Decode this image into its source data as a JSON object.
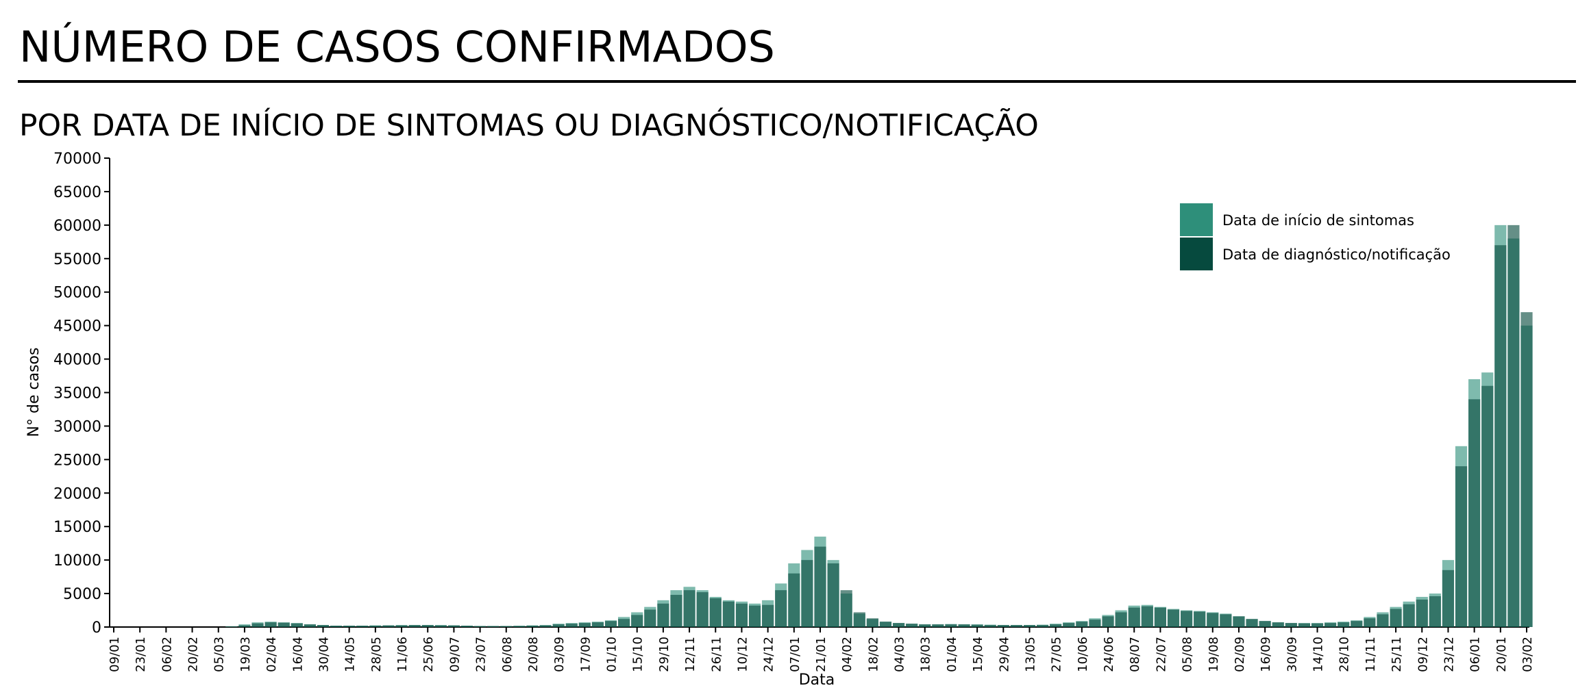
{
  "chart_data": {
    "type": "bar",
    "title": "NÚMERO DE CASOS CONFIRMADOS",
    "subtitle": "POR DATA DE INÍCIO DE SINTOMAS OU DIAGNÓSTICO/NOTIFICAÇÃO",
    "x_label": "Data",
    "y_label": "N° de casos",
    "categories": [
      "09/01",
      null,
      "23/01",
      null,
      "06/02",
      null,
      "20/02",
      null,
      "05/03",
      null,
      "19/03",
      null,
      "02/04",
      null,
      "16/04",
      null,
      "30/04",
      null,
      "14/05",
      null,
      "28/05",
      null,
      "11/06",
      null,
      "25/06",
      null,
      "09/07",
      null,
      "23/07",
      null,
      "06/08",
      null,
      "20/08",
      null,
      "03/09",
      null,
      "17/09",
      null,
      "01/10",
      null,
      "15/10",
      null,
      "29/10",
      null,
      "12/11",
      null,
      "26/11",
      null,
      "10/12",
      null,
      "24/12",
      null,
      "07/01",
      null,
      "21/01",
      null,
      "04/02",
      null,
      "18/02",
      null,
      "04/03",
      null,
      "18/03",
      null,
      "01/04",
      null,
      "15/04",
      null,
      "29/04",
      null,
      "13/05",
      null,
      "27/05",
      null,
      "10/06",
      null,
      "24/06",
      null,
      "08/07",
      null,
      "22/07",
      null,
      "05/08",
      null,
      "19/08",
      null,
      "02/09",
      null,
      "16/09",
      null,
      "30/09",
      null,
      "14/10",
      null,
      "28/10",
      null,
      "11/11",
      null,
      "25/11",
      null,
      "09/12",
      null,
      "23/12",
      null,
      "06/01",
      null,
      "20/01",
      null,
      "03/02"
    ],
    "series": [
      {
        "name": "Data de início de sintomas",
        "color": "#2e8f7a",
        "values": [
          0,
          0,
          0,
          0,
          0,
          0,
          0,
          0,
          0,
          100,
          400,
          700,
          800,
          700,
          600,
          400,
          300,
          200,
          200,
          200,
          250,
          250,
          300,
          300,
          300,
          300,
          250,
          200,
          150,
          150,
          150,
          200,
          250,
          300,
          500,
          600,
          700,
          800,
          1000,
          1500,
          2200,
          3000,
          4000,
          5500,
          6000,
          5500,
          4500,
          4000,
          3800,
          3500,
          4000,
          6500,
          9500,
          11500,
          13500,
          10000,
          5000,
          2000,
          1200,
          800,
          600,
          500,
          400,
          400,
          450,
          400,
          400,
          350,
          300,
          300,
          300,
          350,
          500,
          700,
          900,
          1300,
          1800,
          2500,
          3200,
          3300,
          3000,
          2700,
          2500,
          2400,
          2200,
          2000,
          1600,
          1200,
          900,
          700,
          600,
          600,
          600,
          700,
          800,
          1000,
          1500,
          2200,
          3000,
          3800,
          4500,
          5000,
          10000,
          27000,
          37000,
          38000,
          60000,
          58000,
          45000
        ]
      },
      {
        "name": "Data de diagnóstico/notificação",
        "color": "#064a3e",
        "values": [
          0,
          0,
          0,
          0,
          0,
          0,
          0,
          0,
          0,
          50,
          250,
          550,
          700,
          650,
          550,
          400,
          300,
          200,
          200,
          200,
          200,
          250,
          250,
          300,
          300,
          250,
          250,
          200,
          150,
          150,
          150,
          150,
          200,
          250,
          400,
          500,
          600,
          700,
          900,
          1200,
          1800,
          2600,
          3500,
          4800,
          5500,
          5200,
          4300,
          3800,
          3500,
          3200,
          3300,
          5500,
          8000,
          10000,
          12000,
          9500,
          5500,
          2200,
          1300,
          800,
          600,
          500,
          400,
          400,
          400,
          400,
          350,
          300,
          300,
          300,
          300,
          300,
          400,
          600,
          800,
          1100,
          1600,
          2200,
          2900,
          3100,
          2900,
          2600,
          2400,
          2300,
          2100,
          1900,
          1600,
          1200,
          900,
          700,
          600,
          550,
          550,
          600,
          700,
          900,
          1300,
          1900,
          2700,
          3400,
          4100,
          4600,
          8500,
          24000,
          34000,
          36000,
          57000,
          60000,
          47000
        ]
      }
    ],
    "ylim": [
      0,
      70000
    ],
    "yticks": [
      0,
      5000,
      10000,
      15000,
      20000,
      25000,
      30000,
      35000,
      40000,
      45000,
      50000,
      55000,
      60000,
      65000,
      70000
    ],
    "legend": "upper right"
  }
}
